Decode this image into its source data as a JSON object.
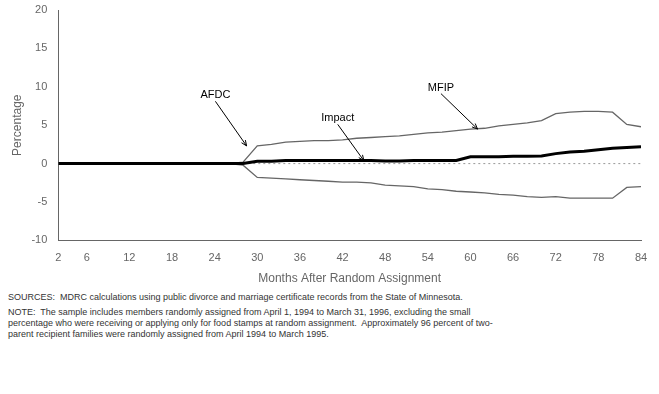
{
  "chart_data": {
    "type": "line",
    "xlabel": "Months After Random Assignment",
    "ylabel": "Percentage",
    "x": [
      2,
      4,
      6,
      8,
      10,
      12,
      14,
      16,
      18,
      20,
      22,
      24,
      26,
      27,
      28,
      30,
      32,
      34,
      36,
      38,
      40,
      42,
      44,
      46,
      48,
      50,
      52,
      54,
      56,
      58,
      60,
      62,
      64,
      66,
      68,
      70,
      72,
      74,
      76,
      78,
      80,
      82,
      84
    ],
    "series": [
      {
        "color": "#666666",
        "values": [
          0,
          0,
          0,
          0,
          0,
          0,
          0,
          0,
          0.05,
          0.05,
          0.05,
          0.05,
          0.05,
          0.1,
          0.2,
          2.3,
          2.5,
          2.8,
          2.9,
          3.0,
          3.0,
          3.1,
          3.3,
          3.4,
          3.5,
          3.6,
          3.8,
          4.0,
          4.1,
          4.3,
          4.5,
          4.6,
          4.9,
          5.1,
          5.3,
          5.6,
          6.5,
          6.7,
          6.8,
          6.8,
          6.7,
          5.1,
          4.8
        ]
      },
      {
        "color": "#666666",
        "values": [
          0,
          0,
          0,
          0,
          0,
          0,
          0,
          0,
          -0.05,
          -0.05,
          -0.05,
          -0.05,
          -0.05,
          -0.1,
          -0.2,
          -1.8,
          -1.9,
          -2.0,
          -2.1,
          -2.2,
          -2.3,
          -2.4,
          -2.4,
          -2.5,
          -2.8,
          -2.9,
          -3.0,
          -3.3,
          -3.4,
          -3.6,
          -3.7,
          -3.8,
          -4.0,
          -4.1,
          -4.3,
          -4.4,
          -4.3,
          -4.5,
          -4.5,
          -4.5,
          -4.5,
          -3.1,
          -3.0
        ]
      },
      {
        "color": "#000000",
        "values": [
          0,
          0,
          0,
          0,
          0,
          0,
          0,
          0,
          0,
          0,
          0,
          0,
          0,
          0,
          0,
          0.3,
          0.3,
          0.4,
          0.4,
          0.4,
          0.4,
          0.4,
          0.4,
          0.4,
          0.35,
          0.35,
          0.4,
          0.4,
          0.4,
          0.4,
          0.9,
          0.9,
          0.9,
          0.95,
          0.95,
          1.0,
          1.3,
          1.5,
          1.6,
          1.8,
          2.0,
          2.1,
          2.2
        ]
      }
    ],
    "xlim": [
      2,
      84
    ],
    "xticks": [
      2,
      6,
      12,
      18,
      24,
      30,
      36,
      42,
      48,
      54,
      60,
      66,
      72,
      78,
      84
    ],
    "ylim": [
      -10,
      20
    ],
    "yticks": [
      -10,
      -5,
      0,
      5,
      10,
      15,
      20
    ],
    "grid": false,
    "hlines": [
      {
        "y": 0,
        "color": "#999999",
        "line_style": "dotted"
      }
    ],
    "annotations": [
      {
        "text": "AFDC",
        "x": 28.5,
        "y": 2.3,
        "text_x": 22,
        "text_y": 8.5
      },
      {
        "text": "Impact",
        "x": 45,
        "y": 0.38,
        "text_x": 39,
        "text_y": 5.5
      },
      {
        "text": "MFIP",
        "x": 61,
        "y": 4.5,
        "text_x": 54,
        "text_y": 9.5
      }
    ],
    "notes": [
      "SOURCES:  MDRC calculations using public divorce and marriage certificate records from the State of Minnesota.",
      "NOTE:  The sample includes members randomly assigned from April 1, 1994 to March 31, 1996, excluding the small\npercentage who were receiving or applying only for food stamps at random assignment.  Approximately 96 percent of two-\nparent recipient families were randomly assigned from April 1994 to March 1995."
    ]
  }
}
